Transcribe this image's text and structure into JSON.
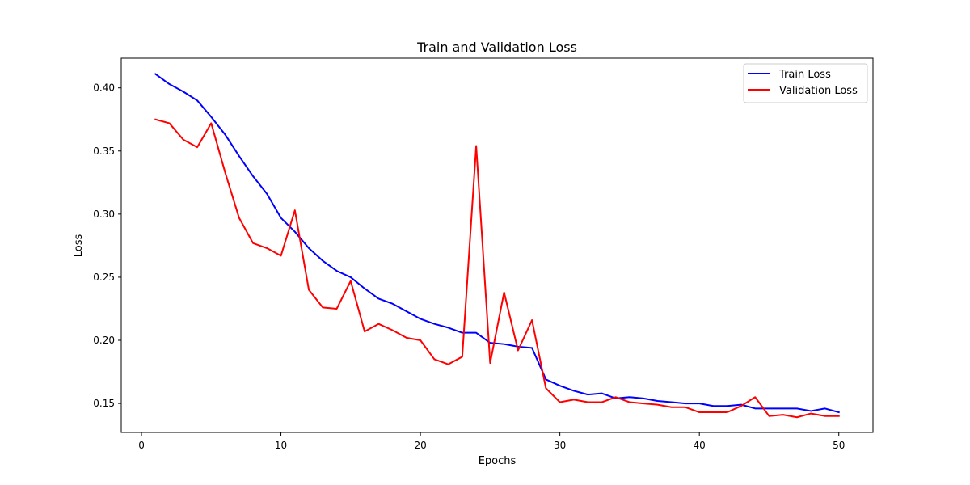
{
  "colors": {
    "train": "#0000ff",
    "validation": "#ff0000",
    "axes": "#000000",
    "legend_border": "#cccccc",
    "background": "#ffffff"
  },
  "chart_data": {
    "type": "line",
    "title": "Train and Validation Loss",
    "xlabel": "Epochs",
    "ylabel": "Loss",
    "xlim": [
      -1.45,
      52.45
    ],
    "ylim": [
      0.127,
      0.4235
    ],
    "xticks": [
      0,
      10,
      20,
      30,
      40,
      50
    ],
    "xtick_labels": [
      "0",
      "10",
      "20",
      "30",
      "40",
      "50"
    ],
    "yticks": [
      0.15,
      0.2,
      0.25,
      0.3,
      0.35,
      0.4
    ],
    "ytick_labels": [
      "0.15",
      "0.20",
      "0.25",
      "0.30",
      "0.35",
      "0.40"
    ],
    "grid": false,
    "legend_position": "top-right",
    "x": [
      1,
      2,
      3,
      4,
      5,
      6,
      7,
      8,
      9,
      10,
      11,
      12,
      13,
      14,
      15,
      16,
      17,
      18,
      19,
      20,
      21,
      22,
      23,
      24,
      25,
      26,
      27,
      28,
      29,
      30,
      31,
      32,
      33,
      34,
      35,
      36,
      37,
      38,
      39,
      40,
      41,
      42,
      43,
      44,
      45,
      46,
      47,
      48,
      49,
      50
    ],
    "series": [
      {
        "name": "Train Loss",
        "color": "#0000ff",
        "values": [
          0.411,
          0.403,
          0.397,
          0.39,
          0.377,
          0.363,
          0.346,
          0.33,
          0.316,
          0.297,
          0.286,
          0.273,
          0.263,
          0.255,
          0.25,
          0.241,
          0.233,
          0.229,
          0.223,
          0.217,
          0.213,
          0.21,
          0.206,
          0.206,
          0.198,
          0.197,
          0.195,
          0.194,
          0.169,
          0.164,
          0.16,
          0.157,
          0.158,
          0.154,
          0.155,
          0.154,
          0.152,
          0.151,
          0.15,
          0.15,
          0.148,
          0.148,
          0.149,
          0.146,
          0.146,
          0.146,
          0.146,
          0.144,
          0.146,
          0.143
        ]
      },
      {
        "name": "Validation Loss",
        "color": "#ff0000",
        "values": [
          0.375,
          0.372,
          0.359,
          0.353,
          0.372,
          0.333,
          0.297,
          0.277,
          0.273,
          0.267,
          0.303,
          0.24,
          0.226,
          0.225,
          0.247,
          0.207,
          0.213,
          0.208,
          0.202,
          0.2,
          0.185,
          0.181,
          0.187,
          0.354,
          0.182,
          0.238,
          0.192,
          0.216,
          0.162,
          0.151,
          0.153,
          0.151,
          0.151,
          0.155,
          0.151,
          0.15,
          0.149,
          0.147,
          0.147,
          0.143,
          0.143,
          0.143,
          0.148,
          0.155,
          0.14,
          0.141,
          0.139,
          0.142,
          0.14,
          0.14
        ]
      }
    ]
  }
}
